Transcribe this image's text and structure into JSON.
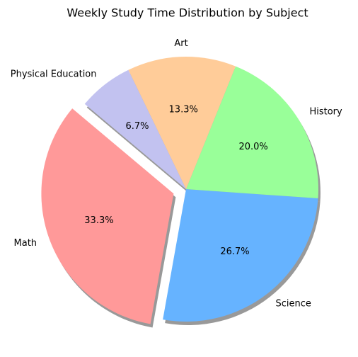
{
  "chart_data": {
    "type": "pie",
    "title": "Weekly Study Time Distribution by Subject",
    "categories": [
      "Math",
      "Science",
      "History",
      "Art",
      "Physical Education"
    ],
    "values": [
      33.3,
      26.7,
      20.0,
      13.3,
      6.7
    ],
    "value_labels": [
      "33.3%",
      "26.7%",
      "20.0%",
      "13.3%",
      "6.7%"
    ],
    "colors": [
      "#ff9999",
      "#66b3ff",
      "#99ff99",
      "#ffcc99",
      "#c2c2f0"
    ],
    "explode": [
      0.1,
      0,
      0,
      0,
      0
    ],
    "startangle": 140,
    "shadow": true
  }
}
